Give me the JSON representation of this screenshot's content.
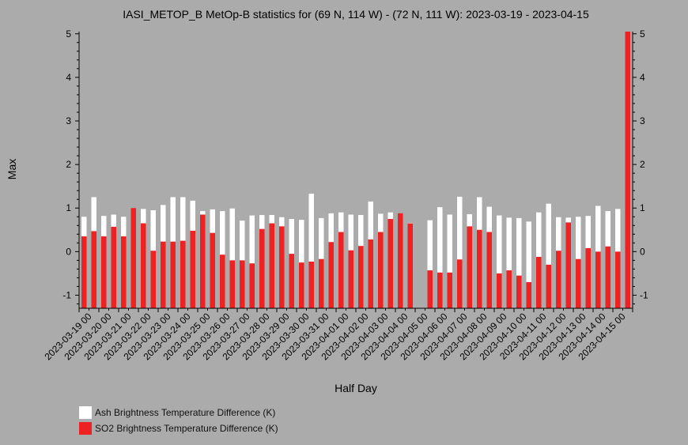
{
  "chart_data": {
    "type": "bar",
    "title": "IASI_METOP_B MetOp-B statistics for (69 N, 114 W) - (72 N, 111 W): 2023-03-19 - 2023-04-15",
    "xlabel": "Half Day",
    "ylabel": "Max",
    "ylim": [
      -1.3,
      5.05
    ],
    "yticks": [
      -1,
      0,
      1,
      2,
      3,
      4,
      5
    ],
    "xtick_labels": [
      "2023-03-19 00",
      "2023-03-20 00",
      "2023-03-21 00",
      "2023-03-22 00",
      "2023-03-23 00",
      "2023-03-24 00",
      "2023-03-25 00",
      "2023-03-26 00",
      "2023-03-27 00",
      "2023-03-28 00",
      "2023-03-29 00",
      "2023-03-30 00",
      "2023-03-31 00",
      "2023-04-01 00",
      "2023-04-02 00",
      "2023-04-03 00",
      "2023-04-04 00",
      "2023-04-05 00",
      "2023-04-06 00",
      "2023-04-07 00",
      "2023-04-08 00",
      "2023-04-09 00",
      "2023-04-10 00",
      "2023-04-11 00",
      "2023-04-12 00",
      "2023-04-13 00",
      "2023-04-14 00",
      "2023-04-15 00"
    ],
    "grid": false,
    "legend_position": "bottom-left",
    "series": [
      {
        "name": "Ash Brightness Temperature Difference (K)",
        "color": "#ffffff",
        "values": [
          0.8,
          1.25,
          0.82,
          0.85,
          0.8,
          0.8,
          0.98,
          0.95,
          1.07,
          1.25,
          1.25,
          1.17,
          0.93,
          0.97,
          0.93,
          0.99,
          0.71,
          0.83,
          0.84,
          0.84,
          0.79,
          0.75,
          0.73,
          1.33,
          0.77,
          0.88,
          0.9,
          0.85,
          0.84,
          1.15,
          0.87,
          0.9,
          0.87,
          0.66,
          null,
          0.72,
          1.02,
          0.85,
          1.26,
          0.86,
          1.25,
          1.03,
          0.83,
          0.78,
          0.77,
          0.69,
          0.9,
          1.1,
          0.79,
          0.78,
          0.8,
          0.82,
          1.05,
          0.93,
          0.98,
          1.0
        ]
      },
      {
        "name": "SO2 Brightness Temperature Difference (K)",
        "color": "#ee2222",
        "values": [
          0.35,
          0.47,
          0.35,
          0.57,
          0.35,
          1.0,
          0.65,
          0.02,
          0.23,
          0.23,
          0.25,
          0.48,
          0.85,
          0.43,
          -0.07,
          -0.2,
          -0.2,
          -0.27,
          0.52,
          0.65,
          0.58,
          -0.05,
          -0.25,
          -0.23,
          -0.17,
          0.22,
          0.45,
          0.03,
          0.13,
          0.28,
          0.45,
          0.75,
          0.88,
          0.65,
          null,
          -0.43,
          -0.48,
          -0.48,
          -0.18,
          0.58,
          0.5,
          0.45,
          -0.5,
          -0.43,
          -0.55,
          -0.7,
          -0.12,
          -0.3,
          0.02,
          0.67,
          -0.17,
          0.08,
          0.0,
          0.12,
          0.0,
          5.05
        ]
      }
    ]
  }
}
